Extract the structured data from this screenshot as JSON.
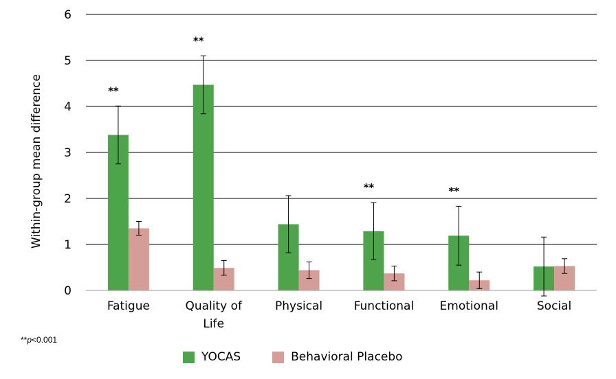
{
  "chart_data": {
    "type": "bar",
    "ylabel": "Within-group mean difference",
    "ylim": [
      0,
      6
    ],
    "yticks": [
      "0",
      "1",
      "2",
      "3",
      "4",
      "5",
      "6"
    ],
    "categories": [
      "Fatigue",
      "Quality of Life",
      "Physical",
      "Functional",
      "Emotional",
      "Social"
    ],
    "category_lines": [
      [
        "Fatigue"
      ],
      [
        "Quality of",
        "Life"
      ],
      [
        "Physical"
      ],
      [
        "Functional"
      ],
      [
        "Emotional"
      ],
      [
        "Social"
      ]
    ],
    "series": [
      {
        "name": "YOCAS",
        "color": "#4ea44b",
        "values": [
          3.38,
          4.47,
          1.44,
          1.29,
          1.19,
          0.52
        ],
        "errors": [
          0.63,
          0.63,
          0.62,
          0.62,
          0.64,
          0.64
        ]
      },
      {
        "name": "Behavioral Placebo",
        "color": "#d49d97",
        "values": [
          1.35,
          0.49,
          0.44,
          0.37,
          0.22,
          0.53
        ],
        "errors": [
          0.15,
          0.16,
          0.18,
          0.16,
          0.18,
          0.16
        ]
      }
    ],
    "significance_marker": "**",
    "significant": [
      true,
      true,
      false,
      true,
      true,
      false
    ],
    "grid": true,
    "legend_position": "bottom"
  },
  "footnote": {
    "stars": "**",
    "p": "p",
    "rest": "<0.001"
  }
}
